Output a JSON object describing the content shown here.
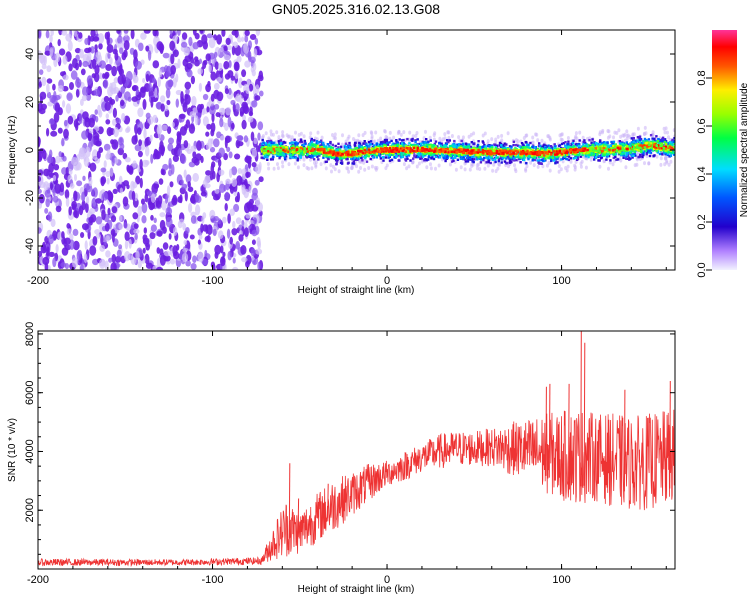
{
  "figure": {
    "title": "GN05.2025.316.02.13.G08"
  },
  "chart_data": [
    {
      "type": "heatmap",
      "title": "GN05.2025.316.02.13.G08",
      "xlabel": "Height of straight line (km)",
      "ylabel": "Frequency (Hz)",
      "xlim": [
        -200,
        165
      ],
      "ylim": [
        -50,
        50
      ],
      "xticks": [
        -200,
        -100,
        0,
        100
      ],
      "xtick_labels": [
        "-200",
        "-100",
        "0",
        "100"
      ],
      "yticks": [
        -40,
        -20,
        0,
        20,
        40
      ],
      "ytick_labels": [
        "-40",
        "-20",
        "0",
        "20",
        "40"
      ],
      "colorbar": {
        "label": "Normalized spectral amplitude",
        "range": [
          0,
          1
        ],
        "ticks": [
          0.0,
          0.2,
          0.4,
          0.6,
          0.8
        ],
        "tick_labels": [
          "0.0",
          "0.2",
          "0.4",
          "0.6",
          "0.8"
        ],
        "colormap": [
          "#f2f2ff",
          "#7a3fe0",
          "#2a00cc",
          "#0044ff",
          "#00ccff",
          "#00ff66",
          "#99ff00",
          "#ffff00",
          "#ff6600",
          "#ff0000",
          "#ff2d8e"
        ]
      },
      "regions": [
        {
          "name": "noise",
          "x_range": [
            -200,
            -72
          ],
          "freq_range": [
            -50,
            50
          ],
          "amplitude": 0.12
        },
        {
          "name": "signal-band",
          "x_range": [
            -72,
            165
          ],
          "center_freq": 0,
          "halfwidth_hz": 4,
          "peak_amplitude": 0.85
        }
      ],
      "signal_center_freq": [
        [
          -72,
          0
        ],
        [
          -60,
          0
        ],
        [
          -45,
          0
        ],
        [
          -40,
          0.5
        ],
        [
          -30,
          -1.5
        ],
        [
          -20,
          -1.5
        ],
        [
          -10,
          -0.5
        ],
        [
          0,
          0
        ],
        [
          20,
          0.2
        ],
        [
          40,
          -0.5
        ],
        [
          60,
          -1
        ],
        [
          80,
          -1
        ],
        [
          90,
          -1.5
        ],
        [
          100,
          -1
        ],
        [
          110,
          0
        ],
        [
          120,
          0
        ],
        [
          140,
          0.5
        ],
        [
          150,
          2
        ],
        [
          160,
          1
        ],
        [
          165,
          0.5
        ]
      ]
    },
    {
      "type": "line",
      "xlabel": "Height of straight line (km)",
      "ylabel": "SNR (10 * v/v)",
      "xlim": [
        -200,
        165
      ],
      "ylim": [
        0,
        8100
      ],
      "xticks": [
        -200,
        -100,
        0,
        100
      ],
      "xtick_labels": [
        "-200",
        "-100",
        "0",
        "100"
      ],
      "yticks": [
        2000,
        4000,
        6000,
        8000
      ],
      "ytick_labels": [
        "2000",
        "4000",
        "6000",
        "8000"
      ],
      "series": [
        {
          "name": "SNR",
          "color": "#ee3333",
          "envelope": [
            {
              "x": -200,
              "low": 100,
              "high": 350
            },
            {
              "x": -120,
              "low": 120,
              "high": 330
            },
            {
              "x": -72,
              "low": 150,
              "high": 400
            },
            {
              "x": -65,
              "low": 300,
              "high": 1500
            },
            {
              "x": -58,
              "low": 400,
              "high": 2400
            },
            {
              "x": -50,
              "low": 500,
              "high": 2000
            },
            {
              "x": -40,
              "low": 900,
              "high": 2600
            },
            {
              "x": -30,
              "low": 1300,
              "high": 3100
            },
            {
              "x": -20,
              "low": 1800,
              "high": 3300
            },
            {
              "x": -10,
              "low": 2300,
              "high": 3600
            },
            {
              "x": 0,
              "low": 2800,
              "high": 3700
            },
            {
              "x": 10,
              "low": 3000,
              "high": 4000
            },
            {
              "x": 20,
              "low": 3300,
              "high": 4300
            },
            {
              "x": 30,
              "low": 3400,
              "high": 4600
            },
            {
              "x": 40,
              "low": 3500,
              "high": 4700
            },
            {
              "x": 50,
              "low": 3500,
              "high": 4700
            },
            {
              "x": 60,
              "low": 3500,
              "high": 4800
            },
            {
              "x": 70,
              "low": 3200,
              "high": 5000
            },
            {
              "x": 80,
              "low": 3000,
              "high": 5100
            },
            {
              "x": 90,
              "low": 2600,
              "high": 5300
            },
            {
              "x": 100,
              "low": 2300,
              "high": 5400
            },
            {
              "x": 110,
              "low": 2200,
              "high": 5500
            },
            {
              "x": 120,
              "low": 2300,
              "high": 5300
            },
            {
              "x": 130,
              "low": 2100,
              "high": 5300
            },
            {
              "x": 140,
              "low": 2000,
              "high": 5200
            },
            {
              "x": 150,
              "low": 2000,
              "high": 5300
            },
            {
              "x": 160,
              "low": 2100,
              "high": 5400
            },
            {
              "x": 165,
              "low": 2200,
              "high": 5500
            }
          ],
          "spikes": [
            {
              "x": -56,
              "y": 3600
            },
            {
              "x": -51,
              "y": 2400
            },
            {
              "x": -34,
              "y": 2900
            },
            {
              "x": 91,
              "y": 6200
            },
            {
              "x": 93,
              "y": 6300
            },
            {
              "x": 104,
              "y": 6300
            },
            {
              "x": 111,
              "y": 8100
            },
            {
              "x": 113,
              "y": 7700
            },
            {
              "x": 136,
              "y": 6100
            },
            {
              "x": 162,
              "y": 6400
            }
          ]
        }
      ]
    }
  ]
}
